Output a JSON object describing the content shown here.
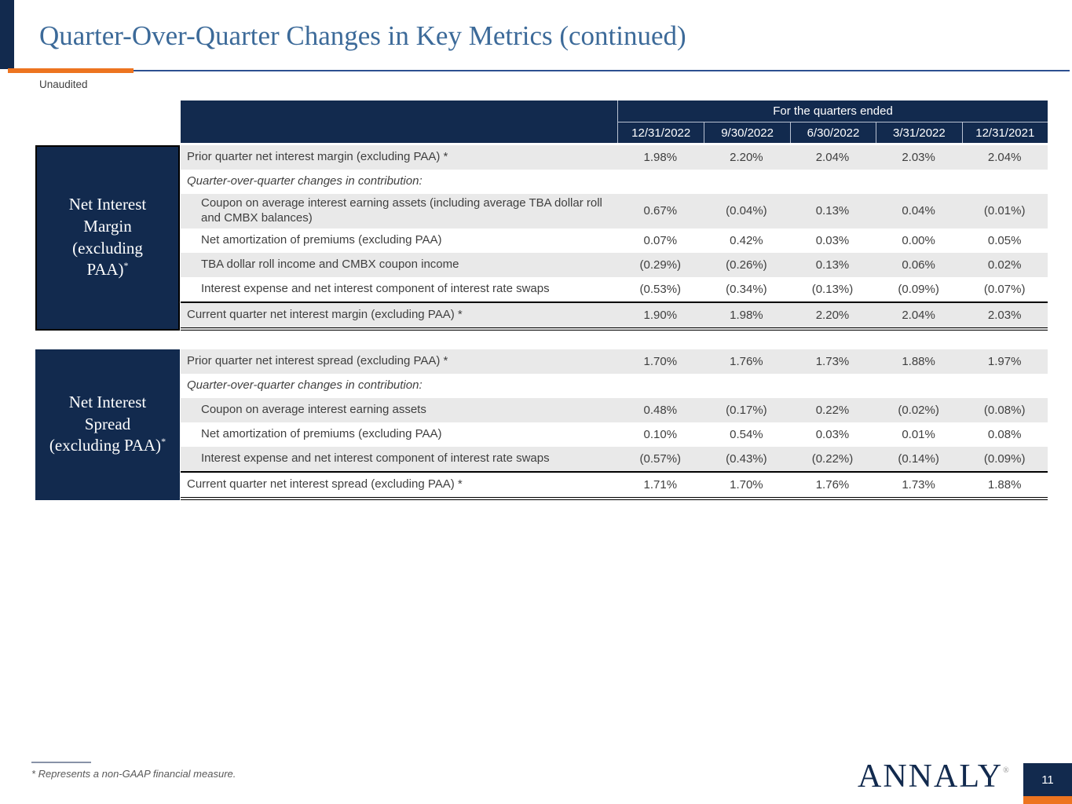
{
  "slide": {
    "title": "Quarter-Over-Quarter Changes in Key Metrics (continued)",
    "subtitle": "Unaudited",
    "footnote": "* Represents a non-GAAP financial measure.",
    "logo_text": "ANNALY",
    "logo_mark": "®",
    "page_number": "11"
  },
  "colors": {
    "navy": "#122a4e",
    "orange": "#ed7420",
    "title_blue": "#3c6a99",
    "row_gray": "#e9e9e9",
    "body_text": "#3f3f3f",
    "separator": "#b9c2d2",
    "footnote_gray": "#595959",
    "rule_gray": "#8892a8",
    "rule_blue": "#2d5090"
  },
  "table_header": {
    "group_label": "For the quarters ended",
    "columns": [
      "12/31/2022",
      "9/30/2022",
      "6/30/2022",
      "3/31/2022",
      "12/31/2021"
    ]
  },
  "sections": [
    {
      "side_label_lines": [
        "Net Interest",
        "Margin",
        "(excluding",
        "PAA)"
      ],
      "side_label_superscript": "*",
      "side_box_border": true,
      "rows": [
        {
          "label": "Prior quarter net interest margin (excluding PAA) *",
          "values": [
            "1.98%",
            "2.20%",
            "2.04%",
            "2.03%",
            "2.04%"
          ],
          "shade": "gray",
          "indent": false,
          "italic": false,
          "total": false
        },
        {
          "label": "Quarter-over-quarter changes in contribution:",
          "values": [
            "",
            "",
            "",
            "",
            ""
          ],
          "shade": "white",
          "indent": false,
          "italic": true,
          "total": false
        },
        {
          "label": "Coupon on average interest earning assets (including average TBA dollar roll and CMBX balances)",
          "values": [
            "0.67%",
            "(0.04%)",
            "0.13%",
            "0.04%",
            "(0.01%)"
          ],
          "shade": "gray",
          "indent": true,
          "italic": false,
          "total": false
        },
        {
          "label": "Net amortization of premiums (excluding PAA)",
          "values": [
            "0.07%",
            "0.42%",
            "0.03%",
            "0.00%",
            "0.05%"
          ],
          "shade": "white",
          "indent": true,
          "italic": false,
          "total": false
        },
        {
          "label": "TBA dollar roll income and CMBX coupon income",
          "values": [
            "(0.29%)",
            "(0.26%)",
            "0.13%",
            "0.06%",
            "0.02%"
          ],
          "shade": "gray",
          "indent": true,
          "italic": false,
          "total": false
        },
        {
          "label": "Interest expense and net interest component of interest rate swaps",
          "values": [
            "(0.53%)",
            "(0.34%)",
            "(0.13%)",
            "(0.09%)",
            "(0.07%)"
          ],
          "shade": "white",
          "indent": true,
          "italic": false,
          "total": false
        },
        {
          "label": "Current quarter net interest margin (excluding PAA) *",
          "values": [
            "1.90%",
            "1.98%",
            "2.20%",
            "2.04%",
            "2.03%"
          ],
          "shade": "gray",
          "indent": false,
          "italic": false,
          "total": true
        }
      ]
    },
    {
      "side_label_lines": [
        "Net Interest",
        "Spread",
        "(excluding PAA)"
      ],
      "side_label_superscript": "*",
      "side_box_border": false,
      "rows": [
        {
          "label": "Prior quarter net interest spread (excluding PAA) *",
          "values": [
            "1.70%",
            "1.76%",
            "1.73%",
            "1.88%",
            "1.97%"
          ],
          "shade": "gray",
          "indent": false,
          "italic": false,
          "total": false
        },
        {
          "label": "Quarter-over-quarter changes in contribution:",
          "values": [
            "",
            "",
            "",
            "",
            ""
          ],
          "shade": "white",
          "indent": false,
          "italic": true,
          "total": false
        },
        {
          "label": "Coupon on average interest earning assets",
          "values": [
            "0.48%",
            "(0.17%)",
            "0.22%",
            "(0.02%)",
            "(0.08%)"
          ],
          "shade": "gray",
          "indent": true,
          "italic": false,
          "total": false
        },
        {
          "label": "Net amortization of premiums (excluding PAA)",
          "values": [
            "0.10%",
            "0.54%",
            "0.03%",
            "0.01%",
            "0.08%"
          ],
          "shade": "white",
          "indent": true,
          "italic": false,
          "total": false
        },
        {
          "label": "Interest expense and net interest component of interest rate swaps",
          "values": [
            "(0.57%)",
            "(0.43%)",
            "(0.22%)",
            "(0.14%)",
            "(0.09%)"
          ],
          "shade": "gray",
          "indent": true,
          "italic": false,
          "total": false
        },
        {
          "label": "Current quarter net interest spread (excluding PAA) *",
          "values": [
            "1.71%",
            "1.70%",
            "1.76%",
            "1.73%",
            "1.88%"
          ],
          "shade": "white",
          "indent": false,
          "italic": false,
          "total": true
        }
      ]
    }
  ]
}
